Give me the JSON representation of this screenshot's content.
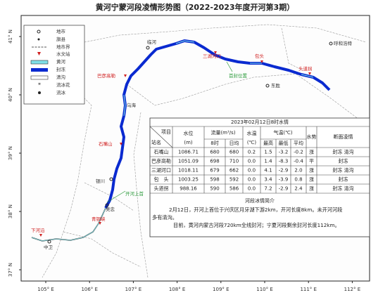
{
  "title": "黄河宁蒙河段凌情形势图（2022-2023年度开河第3期）",
  "legend": [
    "地市",
    "旗县",
    "地市界",
    "水文站",
    "黄河",
    "封冻",
    "清沟",
    "流冰花",
    "流冰"
  ],
  "lon_labels": [
    "105° E",
    "106° E",
    "107° E",
    "108° E",
    "109° E",
    "110° E",
    "111° E",
    "112° E"
  ],
  "lat_labels": [
    "41° N",
    "40° N",
    "39° N",
    "38° N",
    "37° N"
  ],
  "places": [
    "临河",
    "巴彦高勒",
    "乌海",
    "石嘴山",
    "银川",
    "吴忠",
    "青铜峡",
    "中卫",
    "下河沿",
    "三湖河口",
    "包头",
    "头道拐",
    "呼和浩特",
    "东胜",
    "首封位置",
    "开河上首"
  ],
  "table": {
    "title": "2023年02月12日8时水情",
    "header": {
      "item": "项目",
      "station": "站名",
      "level": "水位",
      "level_unit": "(m)",
      "flow": "流量(m³/s)",
      "flow_8": "8时",
      "flow_avg": "日均",
      "water_temp": "水温",
      "water_temp_unit": "(℃)",
      "air_temp": "气温(℃)",
      "air_high": "最高",
      "air_low": "最低",
      "air_avg": "平均",
      "trend": "水势",
      "ice": "断面凌情"
    },
    "rows": [
      [
        "石嘴山",
        "1086.71",
        "680",
        "680",
        "0.2",
        "1.5",
        "-3.2",
        "-0.2",
        "涨",
        "封冻 清沟"
      ],
      [
        "巴彦高勒",
        "1051.09",
        "698",
        "710",
        "0.0",
        "1.4",
        "-8.3",
        "-0.4",
        "平",
        "封冻"
      ],
      [
        "三湖河口",
        "1018.11",
        "679",
        "662",
        "0.0",
        "4.1",
        "-2.9",
        "2.0",
        "涨",
        "封冻 清沟"
      ],
      [
        "包　头",
        "1003.25",
        "598",
        "592",
        "0.0",
        "3.4",
        "-3.9",
        "0.8",
        "涨",
        "封冻"
      ],
      [
        "头道拐",
        "988.16",
        "590",
        "586",
        "0.0",
        "7.2",
        "-2.9",
        "2.4",
        "涨",
        "封冻 清沟"
      ]
    ]
  },
  "briefing": {
    "title": "河段冰情简介",
    "lines": [
      "2月12日，开河上首位于兴庆区月牙湖下游2km，开河长度8km。未开河河段",
      "多有清沟。",
      "目前，黄河内蒙古河段720km全线封河；宁夏河段剩余封河长度112km。"
    ]
  }
}
